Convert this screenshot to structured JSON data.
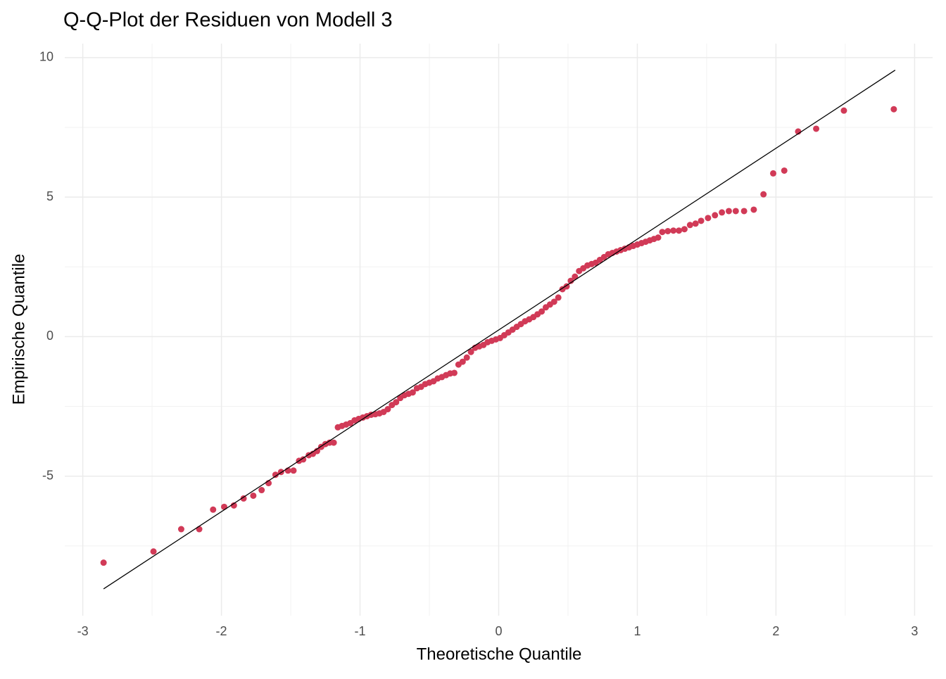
{
  "chart_data": {
    "type": "scatter",
    "title": "Q-Q-Plot der Residuen von Modell 3",
    "x_label": "Theoretische Quantile",
    "y_label": "Empirische Quantile",
    "color": "#d13a57",
    "line_color": "#000000",
    "grid": true,
    "xlim": [
      -3.13,
      3.13
    ],
    "ylim": [
      -10,
      10.5
    ],
    "xticks": [
      -3,
      -2,
      -1,
      0,
      1,
      2,
      3
    ],
    "yticks": [
      -5,
      0,
      5,
      10
    ],
    "x_minor_grid": [
      -2.5,
      -1.5,
      -0.5,
      0.5,
      1.5,
      2.5
    ],
    "y_minor_grid": [
      -7.5,
      -2.5,
      2.5,
      7.5
    ],
    "reference_line": {
      "x": [
        -2.85,
        2.86
      ],
      "y": [
        -9.04,
        9.55
      ]
    },
    "x": [
      -2.85,
      -2.49,
      -2.29,
      -2.16,
      -2.06,
      -1.98,
      -1.91,
      -1.84,
      -1.77,
      -1.71,
      -1.66,
      -1.61,
      -1.57,
      -1.52,
      -1.48,
      -1.44,
      -1.41,
      -1.37,
      -1.34,
      -1.31,
      -1.28,
      -1.25,
      -1.22,
      -1.19,
      -1.16,
      -1.13,
      -1.1,
      -1.07,
      -1.04,
      -1.01,
      -0.98,
      -0.95,
      -0.92,
      -0.89,
      -0.86,
      -0.83,
      -0.8,
      -0.77,
      -0.74,
      -0.71,
      -0.68,
      -0.65,
      -0.62,
      -0.59,
      -0.56,
      -0.53,
      -0.5,
      -0.47,
      -0.44,
      -0.41,
      -0.38,
      -0.35,
      -0.32,
      -0.29,
      -0.26,
      -0.23,
      -0.2,
      -0.17,
      -0.14,
      -0.11,
      -0.08,
      -0.05,
      -0.02,
      0.01,
      0.04,
      0.07,
      0.1,
      0.13,
      0.16,
      0.19,
      0.22,
      0.25,
      0.28,
      0.31,
      0.34,
      0.37,
      0.4,
      0.43,
      0.46,
      0.49,
      0.52,
      0.55,
      0.58,
      0.61,
      0.64,
      0.67,
      0.7,
      0.73,
      0.76,
      0.79,
      0.82,
      0.85,
      0.88,
      0.91,
      0.94,
      0.97,
      1.0,
      1.03,
      1.06,
      1.09,
      1.12,
      1.15,
      1.18,
      1.22,
      1.26,
      1.3,
      1.34,
      1.38,
      1.42,
      1.46,
      1.51,
      1.56,
      1.61,
      1.66,
      1.71,
      1.77,
      1.84,
      1.91,
      1.98,
      2.06,
      2.16,
      2.29,
      2.49,
      2.85
    ],
    "values": [
      -8.1,
      -7.7,
      -6.9,
      -6.9,
      -6.2,
      -6.1,
      -6.05,
      -5.8,
      -5.7,
      -5.5,
      -5.25,
      -4.95,
      -4.85,
      -4.8,
      -4.8,
      -4.45,
      -4.4,
      -4.25,
      -4.2,
      -4.1,
      -3.95,
      -3.85,
      -3.8,
      -3.8,
      -3.25,
      -3.2,
      -3.15,
      -3.1,
      -3.0,
      -2.95,
      -2.9,
      -2.85,
      -2.8,
      -2.78,
      -2.75,
      -2.7,
      -2.6,
      -2.45,
      -2.35,
      -2.2,
      -2.1,
      -2.05,
      -2.0,
      -1.85,
      -1.8,
      -1.7,
      -1.65,
      -1.6,
      -1.5,
      -1.45,
      -1.38,
      -1.32,
      -1.3,
      -1.0,
      -0.9,
      -0.75,
      -0.55,
      -0.4,
      -0.35,
      -0.3,
      -0.2,
      -0.15,
      -0.1,
      -0.05,
      0.05,
      0.15,
      0.25,
      0.35,
      0.45,
      0.55,
      0.62,
      0.7,
      0.8,
      0.9,
      1.05,
      1.15,
      1.25,
      1.4,
      1.7,
      1.8,
      2.0,
      2.15,
      2.35,
      2.45,
      2.55,
      2.6,
      2.65,
      2.75,
      2.85,
      2.95,
      3.0,
      3.05,
      3.1,
      3.15,
      3.2,
      3.25,
      3.3,
      3.35,
      3.4,
      3.45,
      3.5,
      3.55,
      3.75,
      3.78,
      3.8,
      3.8,
      3.85,
      4.0,
      4.05,
      4.15,
      4.25,
      4.35,
      4.45,
      4.5,
      4.5,
      4.5,
      4.55,
      5.1,
      5.85,
      5.95,
      7.35,
      7.45,
      8.1,
      8.15
    ]
  }
}
